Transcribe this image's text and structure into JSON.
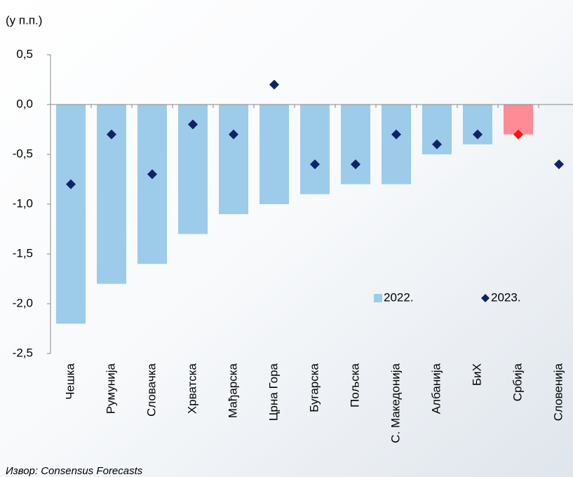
{
  "chart_data": {
    "type": "bar",
    "title": "(у п.п.)",
    "source": "Извор: Consensus Forecasts",
    "categories": [
      "Чешка",
      "Румунија",
      "Словачка",
      "Хрватска",
      "Мађарска",
      "Црна Гора",
      "Бугарска",
      "Пољска",
      "С. Македонија",
      "Албанија",
      "БиХ",
      "Србија",
      "Словенија"
    ],
    "series": [
      {
        "name": "2022.",
        "type": "bar",
        "color": "#9dcbea",
        "colors": [
          "#9dcbea",
          "#9dcbea",
          "#9dcbea",
          "#9dcbea",
          "#9dcbea",
          "#9dcbea",
          "#9dcbea",
          "#9dcbea",
          "#9dcbea",
          "#9dcbea",
          "#9dcbea",
          "#ff8b96",
          "#9dcbea"
        ],
        "values": [
          -2.2,
          -1.8,
          -1.6,
          -1.3,
          -1.1,
          -1.0,
          -0.9,
          -0.8,
          -0.8,
          -0.5,
          -0.4,
          -0.3,
          null
        ]
      },
      {
        "name": "2023.",
        "type": "diamond",
        "color": "#0d2466",
        "colors": [
          "#0d2466",
          "#0d2466",
          "#0d2466",
          "#0d2466",
          "#0d2466",
          "#0d2466",
          "#0d2466",
          "#0d2466",
          "#0d2466",
          "#0d2466",
          "#0d2466",
          "#ff1010",
          "#0d2466"
        ],
        "values": [
          -0.8,
          -0.3,
          -0.7,
          -0.2,
          -0.3,
          0.2,
          -0.6,
          -0.6,
          -0.3,
          -0.4,
          -0.3,
          -0.3,
          -0.6
        ]
      }
    ],
    "ylim": [
      -2.5,
      0.5
    ],
    "yticks": [
      {
        "value": 0.5,
        "label": "0,5"
      },
      {
        "value": 0,
        "label": "0,0"
      },
      {
        "value": -0.5,
        "label": "-0,5"
      },
      {
        "value": -1,
        "label": "-1,0"
      },
      {
        "value": -1.5,
        "label": "-1,5"
      },
      {
        "value": -2,
        "label": "-2,0"
      },
      {
        "value": -2.5,
        "label": "-2,5"
      }
    ]
  }
}
